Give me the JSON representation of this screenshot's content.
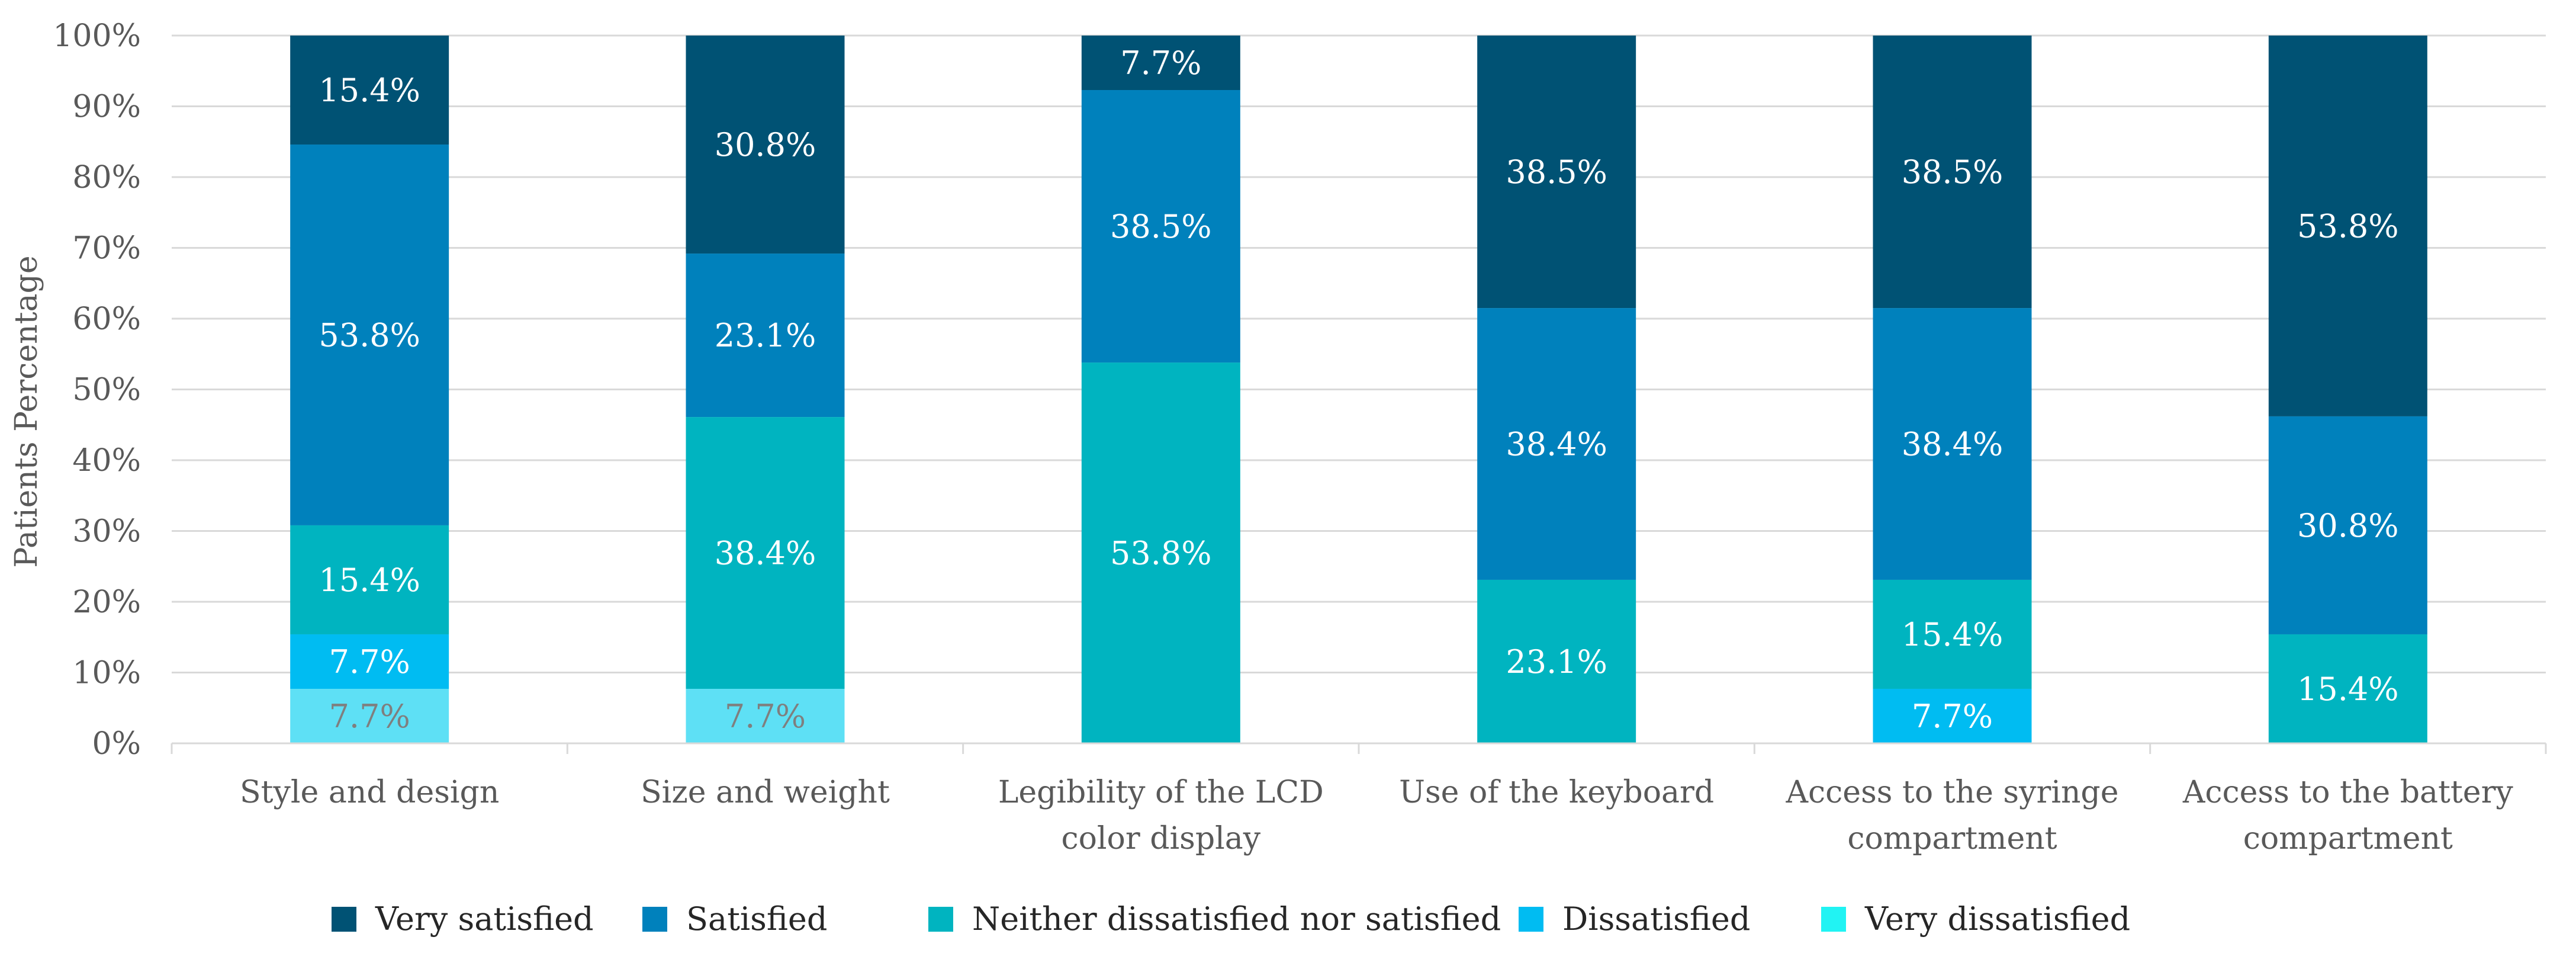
{
  "chart_data": {
    "type": "bar",
    "stacked": true,
    "title": "",
    "xlabel": "",
    "ylabel": "Patients Percentage",
    "ylim": [
      0,
      100
    ],
    "y_ticks": [
      "0%",
      "10%",
      "20%",
      "30%",
      "40%",
      "50%",
      "60%",
      "70%",
      "80%",
      "90%",
      "100%"
    ],
    "grid": true,
    "legend_position": "bottom",
    "categories": [
      [
        "Style and design"
      ],
      [
        "Size and weight"
      ],
      [
        "Legibility of the  LCD",
        "color display"
      ],
      [
        "Use of the keyboard"
      ],
      [
        "Access to the syringe",
        "compartment"
      ],
      [
        "Access to the battery",
        "compartment"
      ]
    ],
    "series": [
      {
        "name": "Very dissatisfied",
        "color": "#5ee0f5",
        "label_color": "#7f7f7f",
        "values": [
          7.7,
          7.7,
          0,
          0,
          0,
          0
        ],
        "labels": [
          "7.7%",
          "7.7%",
          "",
          "",
          "",
          ""
        ]
      },
      {
        "name": "Dissatisfied",
        "color": "#00bcf2",
        "label_color": "#ffffff",
        "values": [
          7.7,
          0,
          0,
          0,
          7.7,
          0
        ],
        "labels": [
          "7.7%",
          "",
          "",
          "",
          "7.7%",
          ""
        ]
      },
      {
        "name": "Neither dissatisfied nor satisfied",
        "color": "#00b4c0",
        "label_color": "#ffffff",
        "values": [
          15.4,
          38.4,
          53.8,
          23.1,
          15.4,
          15.4
        ],
        "labels": [
          "15.4%",
          "38.4%",
          "53.8%",
          "23.1%",
          "15.4%",
          "15.4%"
        ]
      },
      {
        "name": "Satisfied",
        "color": "#0081bc",
        "label_color": "#ffffff",
        "values": [
          53.8,
          23.1,
          38.5,
          38.4,
          38.4,
          30.8
        ],
        "labels": [
          "53.8%",
          "23.1%",
          "38.5%",
          "38.4%",
          "38.4%",
          "30.8%"
        ]
      },
      {
        "name": "Very satisfied",
        "color": "#005274",
        "label_color": "#ffffff",
        "values": [
          15.4,
          30.8,
          7.7,
          38.5,
          38.5,
          53.8
        ],
        "labels": [
          "15.4%",
          "30.8%",
          "7.7%",
          "38.5%",
          "38.5%",
          "53.8%"
        ]
      }
    ],
    "legend": [
      {
        "name": "Very satisfied",
        "color": "#005274"
      },
      {
        "name": "Satisfied",
        "color": "#0081bc"
      },
      {
        "name": "Neither dissatisfied nor satisfied",
        "color": "#00b4c0"
      },
      {
        "name": "Dissatisfied",
        "color": "#00bcf2"
      },
      {
        "name": "Very dissatisfied",
        "color": "#21f3f3"
      }
    ]
  }
}
